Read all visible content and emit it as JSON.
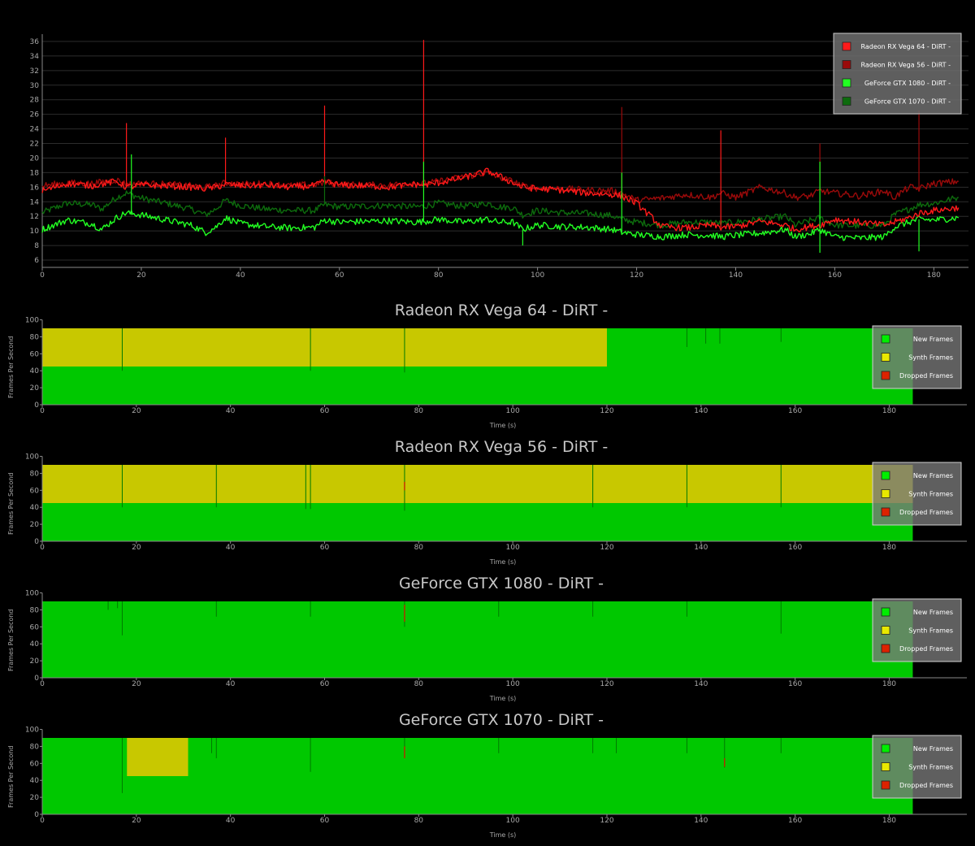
{
  "chart_data": [
    {
      "type": "line",
      "title": "",
      "xlabel": "",
      "ylabel": "",
      "xlim": [
        0,
        187
      ],
      "ylim": [
        5,
        37
      ],
      "xticks": [
        0,
        20,
        40,
        60,
        80,
        100,
        120,
        140,
        160,
        180
      ],
      "yticks": [
        6,
        8,
        10,
        12,
        14,
        16,
        18,
        20,
        22,
        24,
        26,
        28,
        30,
        32,
        34,
        36
      ],
      "grid": true,
      "legend_position": "top-right",
      "series": [
        {
          "name": "Radeon RX Vega 64 - DiRT -",
          "color": "#ff1a1a",
          "x": [
            0,
            5,
            10,
            15,
            17,
            20,
            25,
            30,
            33,
            35,
            37,
            40,
            45,
            50,
            55,
            57,
            60,
            65,
            70,
            75,
            77,
            80,
            85,
            90,
            92,
            95,
            97,
            100,
            105,
            110,
            115,
            117,
            120,
            125,
            130,
            135,
            137,
            140,
            145,
            150,
            152,
            155,
            157,
            160,
            165,
            170,
            172,
            175,
            177,
            180,
            185
          ],
          "y": [
            15.5,
            16.5,
            16.2,
            16.8,
            16,
            16.3,
            16.2,
            16,
            15.8,
            16,
            16.4,
            16.2,
            16.3,
            16,
            16.2,
            16.8,
            16.3,
            16.2,
            16,
            16.4,
            16.3,
            16.6,
            17.3,
            18.2,
            17.6,
            16.6,
            16,
            15.8,
            15.6,
            15.2,
            15,
            14.8,
            13.8,
            10.6,
            10.4,
            10.8,
            10.5,
            10.6,
            11.3,
            10.8,
            10.2,
            10.6,
            10.8,
            11.6,
            11.2,
            10.8,
            11.2,
            11.8,
            12.4,
            12.8,
            13.2
          ]
        },
        {
          "name": "Radeon RX Vega 56 - DiRT -",
          "color": "#9a0a0a",
          "x": [
            0,
            5,
            10,
            15,
            17,
            20,
            25,
            30,
            33,
            35,
            37,
            40,
            45,
            50,
            55,
            57,
            60,
            65,
            70,
            75,
            77,
            80,
            85,
            90,
            92,
            95,
            97,
            100,
            105,
            110,
            115,
            117,
            120,
            125,
            130,
            135,
            137,
            140,
            145,
            150,
            152,
            155,
            157,
            160,
            165,
            170,
            172,
            175,
            177,
            180,
            185
          ],
          "y": [
            16.2,
            16.6,
            16.5,
            17,
            16.4,
            16.5,
            16.4,
            16.2,
            16,
            16.2,
            16.6,
            16.4,
            16.5,
            16.2,
            16.4,
            16.6,
            16.4,
            16.3,
            16.3,
            16.6,
            16.5,
            16.8,
            17.4,
            18,
            17.4,
            16.8,
            16.2,
            15.8,
            15.8,
            15.6,
            15.5,
            15.2,
            14.2,
            14.5,
            15,
            14.6,
            15.2,
            14.6,
            16,
            15.2,
            14.6,
            14.8,
            15.5,
            15.2,
            14.8,
            15.5,
            14.6,
            16,
            15.8,
            16.5,
            16.8
          ]
        },
        {
          "name": "GeForce GTX 1080 - DiRT -",
          "color": "#22ff22",
          "x": [
            0,
            5,
            10,
            12,
            15,
            17,
            20,
            25,
            30,
            33,
            35,
            37,
            40,
            45,
            50,
            55,
            57,
            60,
            65,
            70,
            75,
            77,
            80,
            85,
            90,
            92,
            95,
            97,
            100,
            105,
            110,
            115,
            117,
            120,
            125,
            130,
            135,
            137,
            140,
            145,
            150,
            152,
            155,
            157,
            160,
            165,
            170,
            172,
            175,
            177,
            180,
            185
          ],
          "y": [
            10.2,
            11.5,
            11,
            10.2,
            11.8,
            12.5,
            12.2,
            11.5,
            10.8,
            9.8,
            10.5,
            11.8,
            11,
            10.6,
            10.4,
            10.5,
            11.5,
            11.2,
            11.3,
            11.4,
            11.2,
            11.3,
            11.6,
            11.2,
            11.6,
            11.2,
            11.2,
            10.2,
            10.8,
            10.6,
            10.5,
            10.2,
            9.8,
            9.5,
            9.2,
            9.5,
            9.4,
            9.2,
            9.4,
            9.7,
            10.2,
            9.2,
            9.6,
            10.2,
            9.2,
            9,
            9.2,
            10.5,
            11.2,
            11.6,
            11.5,
            11.8
          ]
        },
        {
          "name": "GeForce GTX 1070 - DiRT -",
          "color": "#0d6b0d",
          "x": [
            0,
            5,
            10,
            12,
            15,
            17,
            20,
            25,
            30,
            33,
            35,
            37,
            40,
            45,
            50,
            55,
            57,
            60,
            65,
            70,
            75,
            77,
            80,
            85,
            90,
            92,
            95,
            97,
            100,
            105,
            110,
            115,
            117,
            120,
            125,
            130,
            135,
            137,
            140,
            145,
            150,
            152,
            155,
            157,
            160,
            165,
            170,
            172,
            175,
            177,
            180,
            185
          ],
          "y": [
            12.5,
            13.8,
            13.6,
            13,
            14.6,
            15.2,
            14.5,
            13.8,
            13,
            12.2,
            13,
            14.2,
            13.5,
            13,
            12.8,
            12.8,
            13.6,
            13.3,
            13.4,
            13.5,
            13.3,
            13.4,
            13.8,
            13.4,
            13.8,
            13.3,
            13.2,
            12.2,
            12.8,
            12.5,
            12.4,
            12.1,
            11.6,
            11.2,
            10.8,
            11.2,
            11.2,
            11,
            11.2,
            11.6,
            12,
            10.8,
            11.4,
            11.8,
            10.8,
            10.7,
            10.8,
            12.2,
            13,
            13.6,
            13.8,
            14.6
          ]
        }
      ],
      "spikes": [
        {
          "series": 0,
          "x": 17,
          "y": 24.8
        },
        {
          "series": 0,
          "x": 37,
          "y": 22.8
        },
        {
          "series": 0,
          "x": 57,
          "y": 27.2
        },
        {
          "series": 0,
          "x": 77,
          "y": 36.2
        },
        {
          "series": 1,
          "x": 117,
          "y": 27
        },
        {
          "series": 0,
          "x": 137,
          "y": 23.8
        },
        {
          "series": 1,
          "x": 157,
          "y": 22
        },
        {
          "series": 1,
          "x": 177,
          "y": 26.5
        },
        {
          "series": 2,
          "x": 18,
          "y": 20.5
        },
        {
          "series": 2,
          "x": 77,
          "y": 19.5
        },
        {
          "series": 2,
          "x": 117,
          "y": 18
        },
        {
          "series": 2,
          "x": 157,
          "y": 19.5
        },
        {
          "series": 3,
          "x": 57,
          "y": 17.5
        },
        {
          "series": 2,
          "x": 97,
          "y": 8
        },
        {
          "series": 2,
          "x": 157,
          "y": 7
        },
        {
          "series": 2,
          "x": 177,
          "y": 7.2
        }
      ]
    },
    {
      "type": "area",
      "title": "Radeon RX Vega 64 - DiRT -",
      "xlabel": "Time (s)",
      "ylabel": "Frames Per Second",
      "xlim": [
        0,
        187
      ],
      "ylim": [
        0,
        100
      ],
      "xticks": [
        0,
        20,
        40,
        60,
        80,
        100,
        120,
        140,
        160,
        180
      ],
      "yticks": [
        0,
        20,
        40,
        60,
        80,
        100
      ],
      "data_end": 185,
      "total_fps": 90,
      "legend": [
        "New Frames",
        "Synth Frames",
        "Dropped Frames"
      ],
      "legend_colors": [
        "#00ee00",
        "#e8e800",
        "#dd2200"
      ],
      "synth_regions": [
        {
          "x0": 0,
          "x1": 120,
          "from": 45,
          "to": 90
        }
      ],
      "new_drops": [
        {
          "x": 17,
          "to": 40
        },
        {
          "x": 57,
          "to": 40
        },
        {
          "x": 77,
          "to": 38
        },
        {
          "x": 137,
          "to": 68
        },
        {
          "x": 141,
          "to": 72
        },
        {
          "x": 144,
          "to": 72
        },
        {
          "x": 157,
          "to": 74
        }
      ],
      "dropped_marks": []
    },
    {
      "type": "area",
      "title": "Radeon RX Vega 56 - DiRT -",
      "xlabel": "Time (s)",
      "ylabel": "Frames Per Second",
      "xlim": [
        0,
        187
      ],
      "ylim": [
        0,
        100
      ],
      "xticks": [
        0,
        20,
        40,
        60,
        80,
        100,
        120,
        140,
        160,
        180
      ],
      "yticks": [
        0,
        20,
        40,
        60,
        80,
        100
      ],
      "data_end": 185,
      "total_fps": 90,
      "legend": [
        "New Frames",
        "Synth Frames",
        "Dropped Frames"
      ],
      "legend_colors": [
        "#00ee00",
        "#e8e800",
        "#dd2200"
      ],
      "synth_regions": [
        {
          "x0": 0,
          "x1": 185,
          "from": 45,
          "to": 90
        }
      ],
      "new_drops": [
        {
          "x": 17,
          "to": 40
        },
        {
          "x": 37,
          "to": 40
        },
        {
          "x": 56,
          "to": 38
        },
        {
          "x": 57,
          "to": 38
        },
        {
          "x": 77,
          "to": 36
        },
        {
          "x": 117,
          "to": 40
        },
        {
          "x": 137,
          "to": 40
        },
        {
          "x": 157,
          "to": 40
        }
      ],
      "dropped_marks": [
        {
          "x": 77,
          "from": 60,
          "to": 70
        }
      ]
    },
    {
      "type": "area",
      "title": "GeForce GTX 1080 - DiRT -",
      "xlabel": "Time (s)",
      "ylabel": "Frames Per Second",
      "xlim": [
        0,
        187
      ],
      "ylim": [
        0,
        100
      ],
      "xticks": [
        0,
        20,
        40,
        60,
        80,
        100,
        120,
        140,
        160,
        180
      ],
      "yticks": [
        0,
        20,
        40,
        60,
        80,
        100
      ],
      "data_end": 185,
      "total_fps": 90,
      "legend": [
        "New Frames",
        "Synth Frames",
        "Dropped Frames"
      ],
      "legend_colors": [
        "#00ee00",
        "#e8e800",
        "#dd2200"
      ],
      "synth_regions": [],
      "new_drops": [
        {
          "x": 14,
          "to": 80
        },
        {
          "x": 16,
          "to": 82
        },
        {
          "x": 17,
          "to": 50
        },
        {
          "x": 37,
          "to": 72
        },
        {
          "x": 57,
          "to": 72
        },
        {
          "x": 77,
          "to": 60
        },
        {
          "x": 97,
          "to": 72
        },
        {
          "x": 117,
          "to": 72
        },
        {
          "x": 137,
          "to": 72
        },
        {
          "x": 157,
          "to": 52
        }
      ],
      "dropped_marks": [
        {
          "x": 77,
          "from": 66,
          "to": 86
        }
      ]
    },
    {
      "type": "area",
      "title": "GeForce GTX 1070 - DiRT -",
      "xlabel": "Time (s)",
      "ylabel": "Frames Per Second",
      "xlim": [
        0,
        187
      ],
      "ylim": [
        0,
        100
      ],
      "xticks": [
        0,
        20,
        40,
        60,
        80,
        100,
        120,
        140,
        160,
        180
      ],
      "yticks": [
        0,
        20,
        40,
        60,
        80,
        100
      ],
      "data_end": 185,
      "total_fps": 90,
      "legend": [
        "New Frames",
        "Synth Frames",
        "Dropped Frames"
      ],
      "legend_colors": [
        "#00ee00",
        "#e8e800",
        "#dd2200"
      ],
      "synth_regions": [
        {
          "x0": 18,
          "x1": 31,
          "from": 45,
          "to": 90
        }
      ],
      "new_drops": [
        {
          "x": 17,
          "to": 25
        },
        {
          "x": 36,
          "to": 72
        },
        {
          "x": 37,
          "to": 66
        },
        {
          "x": 57,
          "to": 50
        },
        {
          "x": 77,
          "to": 68
        },
        {
          "x": 97,
          "to": 72
        },
        {
          "x": 117,
          "to": 72
        },
        {
          "x": 122,
          "to": 72
        },
        {
          "x": 137,
          "to": 72
        },
        {
          "x": 145,
          "to": 55
        },
        {
          "x": 157,
          "to": 72
        }
      ],
      "dropped_marks": [
        {
          "x": 77,
          "from": 66,
          "to": 80
        },
        {
          "x": 145,
          "from": 56,
          "to": 66
        }
      ]
    }
  ]
}
